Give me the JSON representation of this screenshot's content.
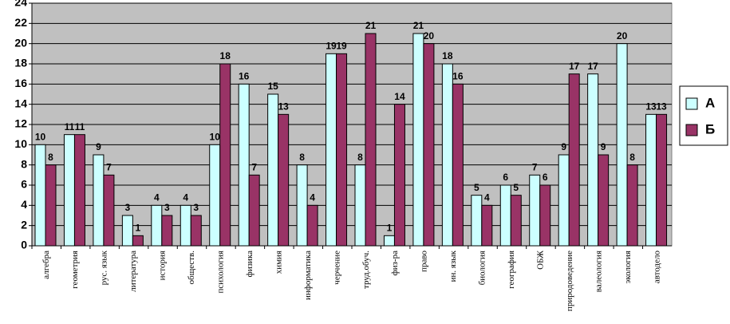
{
  "chart_data": {
    "type": "bar",
    "categories": [
      "алгебра",
      "геометрия",
      "рус. язык",
      "литература",
      "история",
      "обществ.",
      "психология",
      "физика",
      "химия",
      "информатика",
      "черчение",
      "труд.обуч.",
      "физ-ра",
      "право",
      "ин. язык",
      "биология",
      "география",
      "ОБЖ",
      "природоведение",
      "валеология",
      "экология",
      "автодело"
    ],
    "series": [
      {
        "name": "А",
        "color": "#ccffff",
        "values": [
          10,
          11,
          9,
          3,
          4,
          4,
          10,
          16,
          15,
          8,
          19,
          8,
          1,
          21,
          18,
          5,
          6,
          7,
          9,
          17,
          20,
          13
        ]
      },
      {
        "name": "Б",
        "color": "#993366",
        "values": [
          8,
          11,
          7,
          1,
          3,
          3,
          18,
          7,
          13,
          4,
          19,
          21,
          14,
          20,
          16,
          4,
          5,
          6,
          17,
          9,
          8,
          13
        ]
      }
    ],
    "ylim": [
      0,
      24
    ],
    "yticks": [
      0,
      2,
      4,
      6,
      8,
      10,
      12,
      14,
      16,
      18,
      20,
      22,
      24
    ],
    "grid": true,
    "plot_background": "#c0c0c0",
    "legend": "right"
  }
}
